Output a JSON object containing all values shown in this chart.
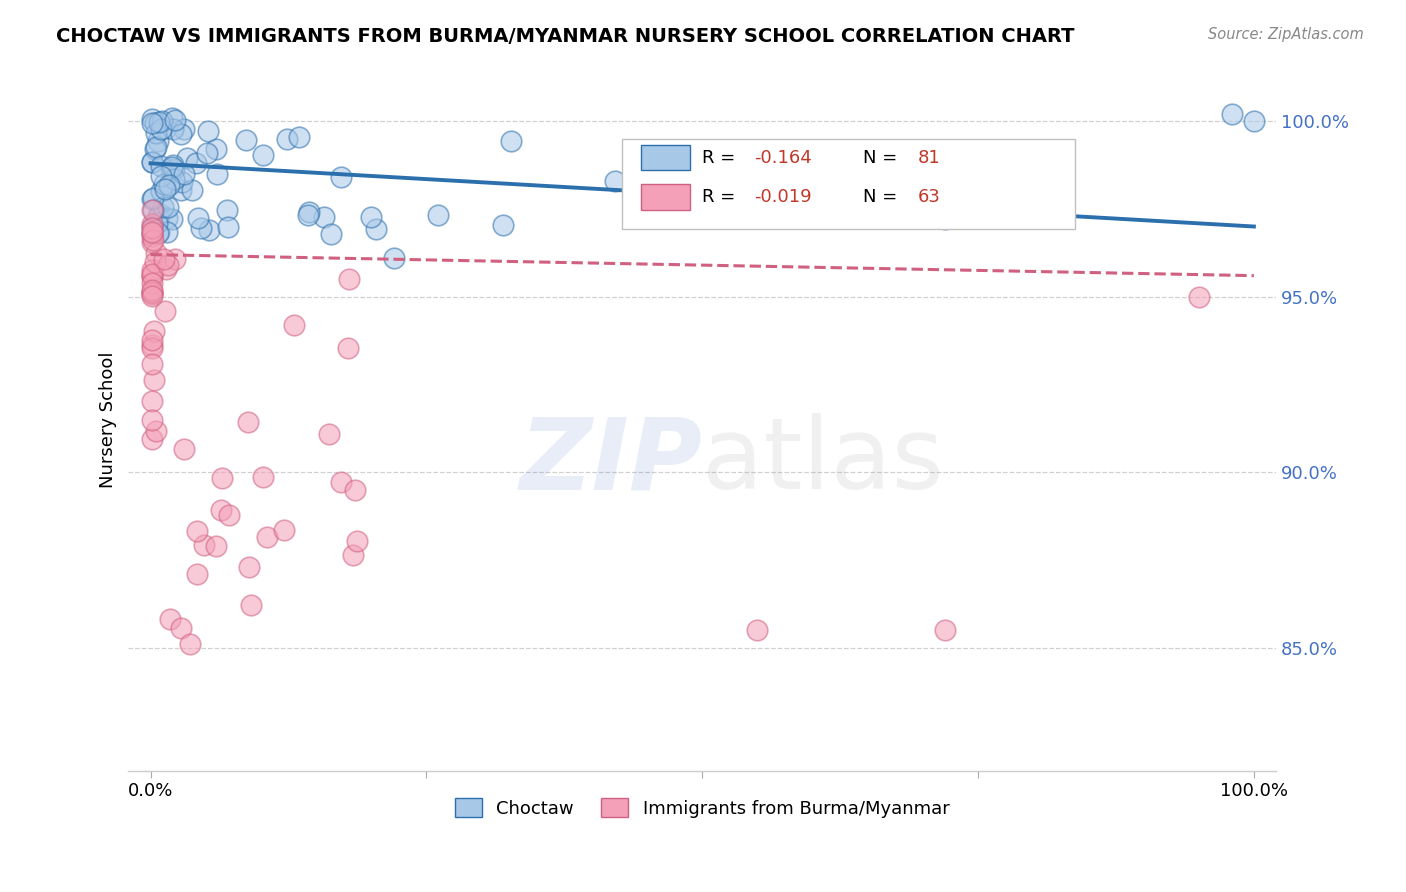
{
  "title": "CHOCTAW VS IMMIGRANTS FROM BURMA/MYANMAR NURSERY SCHOOL CORRELATION CHART",
  "source": "Source: ZipAtlas.com",
  "ylabel": "Nursery School",
  "legend_label_1": "Choctaw",
  "legend_label_2": "Immigrants from Burma/Myanmar",
  "R1": -0.164,
  "N1": 81,
  "R2": -0.019,
  "N2": 63,
  "color1": "#a8c8e8",
  "color2": "#f4a0b8",
  "line_color1": "#2c6fad",
  "line_color2": "#d06080",
  "xlim_min": -0.02,
  "xlim_max": 1.02,
  "ylim_min": 0.815,
  "ylim_max": 1.015,
  "ytick_vals": [
    0.85,
    0.9,
    0.95,
    1.0
  ],
  "blue_trend_start": 0.988,
  "blue_trend_end": 0.97,
  "pink_trend_start": 0.962,
  "pink_trend_end": 0.956
}
